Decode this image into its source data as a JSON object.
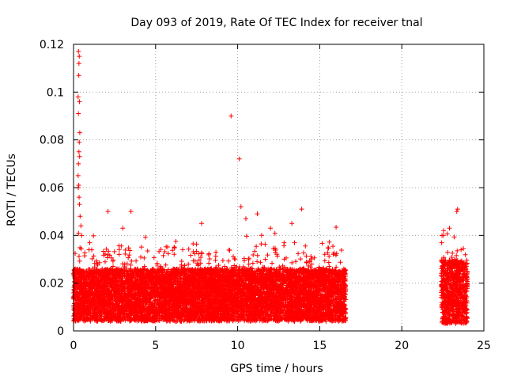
{
  "chart_data": {
    "type": "scatter",
    "title": "Day 093 of 2019, Rate Of TEC Index for receiver tnal",
    "xlabel": "GPS time / hours",
    "ylabel": "ROTI / TECUs",
    "xlim": [
      0,
      25
    ],
    "ylim": [
      0,
      0.12
    ],
    "xticks": [
      0,
      5,
      10,
      15,
      20,
      25
    ],
    "xtick_labels": [
      "0",
      "5",
      "10",
      "15",
      "20",
      "25"
    ],
    "yticks": [
      0,
      0.02,
      0.04,
      0.06,
      0.08,
      0.1,
      0.12
    ],
    "ytick_labels": [
      "0",
      "0.02",
      "0.04",
      "0.06",
      "0.08",
      "0.1",
      "0.12"
    ],
    "grid": true,
    "marker": "plus",
    "color": "#ff0000",
    "series": [
      {
        "name": "ROTI",
        "description": "dense ROTI samples, mostly 0.005–0.03 TECU/min",
        "segments": [
          {
            "x_range": [
              0.0,
              16.6
            ],
            "y_base": [
              0.004,
              0.026
            ]
          },
          {
            "x_range": [
              22.4,
              24.0
            ],
            "y_base": [
              0.003,
              0.03
            ]
          }
        ],
        "highlights": [
          [
            0.3,
            0.117
          ],
          [
            0.35,
            0.115
          ],
          [
            0.33,
            0.112
          ],
          [
            0.32,
            0.107
          ],
          [
            0.28,
            0.098
          ],
          [
            0.36,
            0.096
          ],
          [
            0.3,
            0.091
          ],
          [
            0.38,
            0.083
          ],
          [
            0.35,
            0.079
          ],
          [
            0.33,
            0.075
          ],
          [
            0.37,
            0.073
          ],
          [
            0.3,
            0.07
          ],
          [
            0.28,
            0.065
          ],
          [
            0.32,
            0.061
          ],
          [
            0.29,
            0.06
          ],
          [
            0.34,
            0.056
          ],
          [
            0.36,
            0.053
          ],
          [
            0.4,
            0.048
          ],
          [
            0.45,
            0.044
          ],
          [
            0.5,
            0.04
          ],
          [
            9.6,
            0.09
          ],
          [
            10.1,
            0.072
          ],
          [
            10.2,
            0.052
          ],
          [
            10.5,
            0.047
          ],
          [
            11.2,
            0.049
          ],
          [
            2.1,
            0.05
          ],
          [
            3.5,
            0.05
          ],
          [
            13.9,
            0.051
          ],
          [
            23.4,
            0.051
          ],
          [
            23.35,
            0.05
          ],
          [
            7.8,
            0.045
          ],
          [
            13.3,
            0.045
          ],
          [
            22.55,
            0.042
          ],
          [
            3.0,
            0.043
          ],
          [
            12.0,
            0.043
          ]
        ]
      }
    ]
  }
}
